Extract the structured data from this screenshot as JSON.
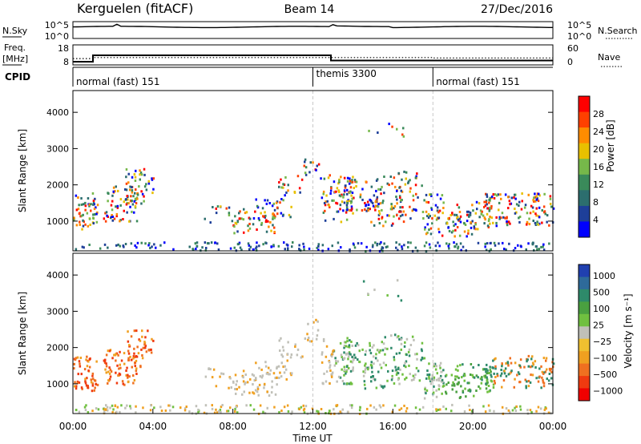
{
  "header": {
    "station": "Kerguelen (fitACF)",
    "beam": "Beam 14",
    "date": "27/Dec/2016"
  },
  "nsky_panel": {
    "label": "N.Sky",
    "right_label": "N.Search",
    "left_ticks": [
      "10^5",
      "10^0"
    ],
    "right_ticks": [
      "10^5",
      "10^0"
    ]
  },
  "freq_panel": {
    "label_top": "Freq.",
    "label_bottom": "[MHz]",
    "right_label": "Nave",
    "left_ticks": [
      "18",
      "8"
    ],
    "right_ticks": [
      "60",
      "0"
    ],
    "freq_steps": [
      {
        "from": 0.0,
        "to": 1.0,
        "value": 9.6
      },
      {
        "from": 1.0,
        "to": 12.9,
        "value": 12.8
      },
      {
        "from": 12.9,
        "to": 24.0,
        "value": 10.2
      }
    ],
    "nave_steps": [
      {
        "from": 0.0,
        "to": 1.0,
        "value": 19
      },
      {
        "from": 1.0,
        "to": 12.9,
        "value": 22
      },
      {
        "from": 12.9,
        "to": 18.0,
        "value": 22
      },
      {
        "from": 18.0,
        "to": 24.0,
        "value": 21
      }
    ]
  },
  "cpid_panel": {
    "label": "CPID",
    "segments": [
      {
        "start": 0.0,
        "label": "normal (fast) 151"
      },
      {
        "start": 12.0,
        "label": "themis 3300"
      },
      {
        "start": 18.0,
        "label": "normal (fast) 151"
      }
    ]
  },
  "chart_data": [
    {
      "type": "heatmap",
      "name": "power",
      "ylabel": "Slant Range [km]",
      "yticks": [
        "1000",
        "2000",
        "3000",
        "4000"
      ],
      "ylim": [
        180,
        4600
      ],
      "xlim": [
        0,
        24
      ],
      "colorbar": {
        "label": "Power [dB]",
        "ticks": [
          "4",
          "8",
          "12",
          "16",
          "20",
          "24",
          "28"
        ],
        "range": [
          0,
          32
        ],
        "colors": [
          "#0000ff",
          "#1e3f99",
          "#2c6e6e",
          "#3a8a5a",
          "#76b84a",
          "#e8c000",
          "#ff8c00",
          "#ff4000",
          "#ff0000"
        ]
      }
    },
    {
      "type": "heatmap",
      "name": "velocity",
      "ylabel": "Slant Range [km]",
      "yticks": [
        "1000",
        "2000",
        "3000",
        "4000"
      ],
      "ylim": [
        180,
        4600
      ],
      "xlim": [
        0,
        24
      ],
      "xlabel": "Time UT",
      "xticks": [
        "00:00",
        "04:00",
        "08:00",
        "12:00",
        "16:00",
        "20:00",
        "00:00"
      ],
      "colorbar": {
        "label": "Velocity [m s⁻¹]",
        "ticks": [
          "1000",
          "500",
          "100",
          "25",
          "−25",
          "−100",
          "−500",
          "−1000"
        ],
        "colors": [
          "#2040b0",
          "#2e6a9a",
          "#2e8a6a",
          "#4aa040",
          "#70c040",
          "#c0c0b8",
          "#f0c030",
          "#f0a020",
          "#f07020",
          "#f03a10",
          "#f00000"
        ]
      }
    }
  ],
  "colors": {
    "guide_line": "#c8c8c8",
    "axis": "#000000"
  }
}
